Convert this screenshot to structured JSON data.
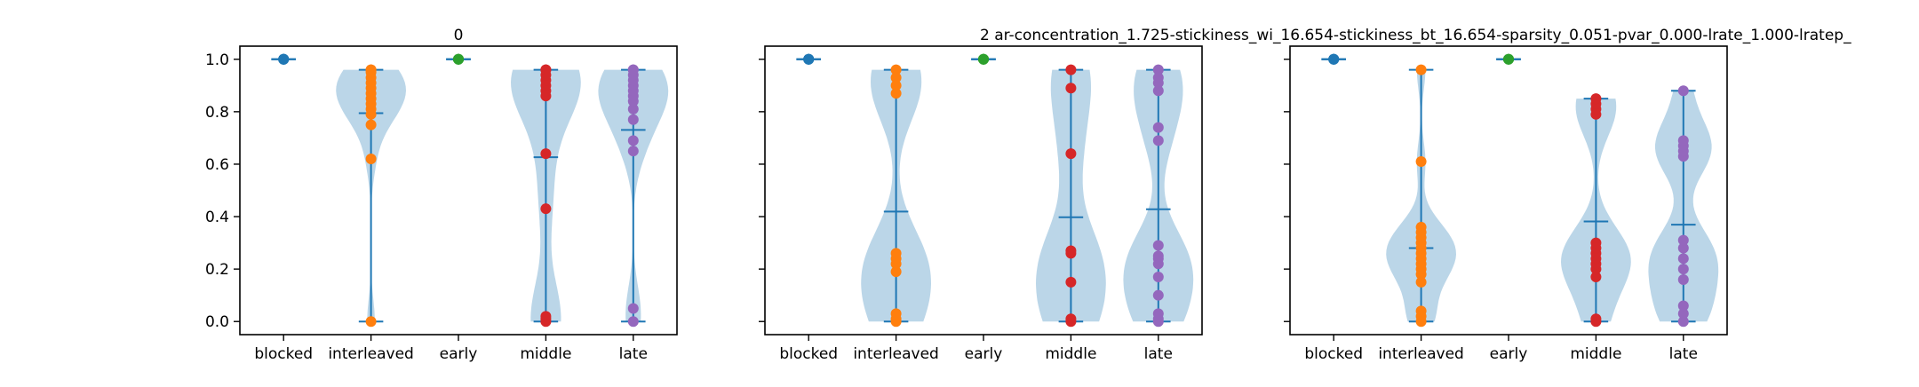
{
  "figure": {
    "suptitle": "2    ar-concentration_1.725-stickiness_wi_16.654-stickiness_bt_16.654-sparsity_0.051-pvar_0.000-lrate_1.000-lratep_"
  },
  "chart_data": [
    {
      "type": "violin",
      "title": "0",
      "categories": [
        "blocked",
        "interleaved",
        "early",
        "middle",
        "late"
      ],
      "yticks": [
        "0.0",
        "0.2",
        "0.4",
        "0.6",
        "0.8",
        "1.0"
      ],
      "ylim": [
        -0.05,
        1.05
      ],
      "point_colors": [
        "#1f77b4",
        "#ff7f0e",
        "#2ca02c",
        "#d62728",
        "#9467bd"
      ],
      "violin_color": "#1f77b4",
      "groups": [
        {
          "points": [
            1.0,
            1.0,
            1.0,
            1.0,
            1.0
          ]
        },
        {
          "points": [
            0.0,
            0.62,
            0.75,
            0.79,
            0.81,
            0.83,
            0.85,
            0.87,
            0.89,
            0.91,
            0.93,
            0.95,
            0.96,
            0.96
          ]
        },
        {
          "points": [
            1.0,
            1.0,
            1.0,
            1.0
          ]
        },
        {
          "points": [
            0.0,
            0.01,
            0.02,
            0.43,
            0.64,
            0.86,
            0.88,
            0.9,
            0.92,
            0.94,
            0.96,
            0.96
          ]
        },
        {
          "points": [
            0.0,
            0.05,
            0.65,
            0.69,
            0.77,
            0.81,
            0.84,
            0.86,
            0.88,
            0.9,
            0.92,
            0.94,
            0.96,
            0.96
          ]
        }
      ]
    },
    {
      "type": "violin",
      "title": "",
      "categories": [
        "blocked",
        "interleaved",
        "early",
        "middle",
        "late"
      ],
      "yticks": [
        "",
        "",
        "",
        "",
        "",
        ""
      ],
      "ylim": [
        -0.05,
        1.05
      ],
      "point_colors": [
        "#1f77b4",
        "#ff7f0e",
        "#2ca02c",
        "#d62728",
        "#9467bd"
      ],
      "violin_color": "#1f77b4",
      "groups": [
        {
          "points": [
            1.0,
            1.0,
            1.0,
            1.0
          ]
        },
        {
          "points": [
            0.0,
            0.01,
            0.03,
            0.19,
            0.22,
            0.24,
            0.26,
            0.87,
            0.9,
            0.93,
            0.96
          ]
        },
        {
          "points": [
            1.0,
            1.0,
            1.0,
            1.0
          ]
        },
        {
          "points": [
            0.0,
            0.01,
            0.15,
            0.26,
            0.27,
            0.64,
            0.89,
            0.96
          ]
        },
        {
          "points": [
            0.0,
            0.01,
            0.03,
            0.1,
            0.17,
            0.22,
            0.24,
            0.25,
            0.29,
            0.69,
            0.74,
            0.88,
            0.91,
            0.93,
            0.96
          ]
        }
      ]
    },
    {
      "type": "violin",
      "title": "",
      "categories": [
        "blocked",
        "interleaved",
        "early",
        "middle",
        "late"
      ],
      "yticks": [
        "",
        "",
        "",
        "",
        "",
        ""
      ],
      "ylim": [
        -0.05,
        1.05
      ],
      "point_colors": [
        "#1f77b4",
        "#ff7f0e",
        "#2ca02c",
        "#d62728",
        "#9467bd"
      ],
      "violin_color": "#1f77b4",
      "groups": [
        {
          "points": [
            1.0,
            1.0,
            1.0,
            1.0
          ]
        },
        {
          "points": [
            0.0,
            0.02,
            0.04,
            0.15,
            0.18,
            0.2,
            0.22,
            0.24,
            0.26,
            0.28,
            0.3,
            0.32,
            0.34,
            0.36,
            0.61,
            0.96
          ]
        },
        {
          "points": [
            1.0,
            1.0,
            1.0
          ]
        },
        {
          "points": [
            0.0,
            0.01,
            0.17,
            0.2,
            0.22,
            0.24,
            0.26,
            0.28,
            0.3,
            0.79,
            0.81,
            0.83,
            0.85
          ]
        },
        {
          "points": [
            0.0,
            0.03,
            0.06,
            0.16,
            0.2,
            0.24,
            0.28,
            0.31,
            0.63,
            0.65,
            0.67,
            0.69,
            0.88
          ]
        }
      ]
    }
  ]
}
